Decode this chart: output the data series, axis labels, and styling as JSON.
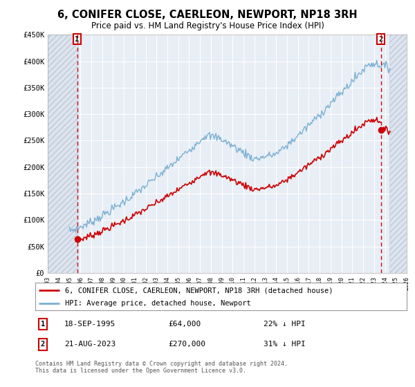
{
  "title": "6, CONIFER CLOSE, CAERLEON, NEWPORT, NP18 3RH",
  "subtitle": "Price paid vs. HM Land Registry's House Price Index (HPI)",
  "ylim": [
    0,
    450000
  ],
  "xlim_start": 1993.0,
  "xlim_end": 2026.0,
  "sale1_year": 1995.71,
  "sale1_price": 64000,
  "sale2_year": 2023.63,
  "sale2_price": 270000,
  "hpi_color": "#7ab0d4",
  "price_color": "#cc0000",
  "marker_color": "#cc0000",
  "hatch_color": "#dce4ef",
  "background_color": "#ffffff",
  "plot_bg_color": "#e8eef5",
  "grid_color": "#ffffff",
  "legend_line1": "6, CONIFER CLOSE, CAERLEON, NEWPORT, NP18 3RH (detached house)",
  "legend_line2": "HPI: Average price, detached house, Newport",
  "note1_date": "18-SEP-1995",
  "note1_price": "£64,000",
  "note1_hpi": "22% ↓ HPI",
  "note2_date": "21-AUG-2023",
  "note2_price": "£270,000",
  "note2_hpi": "31% ↓ HPI",
  "footer": "Contains HM Land Registry data © Crown copyright and database right 2024.\nThis data is licensed under the Open Government Licence v3.0."
}
